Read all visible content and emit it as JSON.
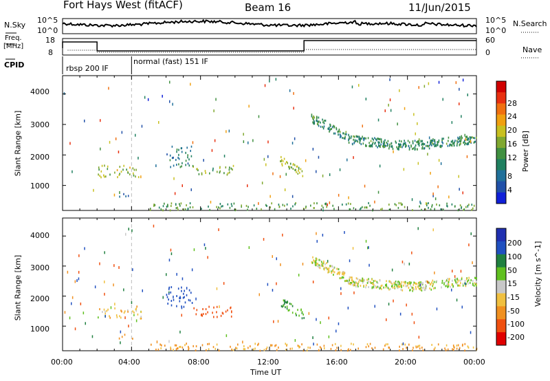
{
  "header": {
    "station": "Fort Hays West (fitACF)",
    "beam": "Beam 16",
    "date": "11/Jun/2015"
  },
  "top_panel": {
    "left_label": "N.Sky",
    "right_label": "N.Search",
    "left_ticks": [
      "10^5",
      "10^0"
    ],
    "right_ticks": [
      "10^5",
      "10^0"
    ]
  },
  "freq_panel": {
    "left_label_1": "Freq.",
    "left_label_2": "[MHz]",
    "right_label": "Nave",
    "left_ticks": [
      "18",
      "8"
    ],
    "right_ticks": [
      "60",
      "0"
    ]
  },
  "cpid": {
    "label": "CPID",
    "modes": [
      {
        "label": "rbsp 200 IF",
        "start": 0,
        "end": 4
      },
      {
        "label": "normal (fast) 151 IF",
        "start": 4,
        "end": 24
      }
    ]
  },
  "chart_data": [
    {
      "type": "heatmap",
      "quantity": "Power",
      "xlabel": "",
      "ylabel": "Slant Range [km]",
      "x_unit": "hours UT",
      "xlim": [
        0,
        24
      ],
      "ylim": [
        180,
        4600
      ],
      "yticks": [
        1000,
        2000,
        3000,
        4000
      ],
      "colorbar": {
        "label": "Power [dB]",
        "ticks": [
          "4",
          "8",
          "12",
          "16",
          "20",
          "24",
          "28"
        ],
        "colors": [
          "#1020d8",
          "#2050a8",
          "#20709a",
          "#208060",
          "#409040",
          "#80a830",
          "#c8c020",
          "#f0a010",
          "#f07010",
          "#e83010",
          "#d00000"
        ]
      },
      "regions": [
        {
          "t0": 2.0,
          "t1": 4.6,
          "r0": 1250,
          "r1": 1650,
          "val": 16
        },
        {
          "t0": 3.2,
          "t1": 4.1,
          "r0": 580,
          "r1": 720,
          "val": 6
        },
        {
          "t0": 6.0,
          "t1": 7.5,
          "r0": 1600,
          "r1": 2300,
          "val": 8
        },
        {
          "t0": 7.5,
          "t1": 9.9,
          "r0": 1300,
          "r1": 1650,
          "val": 14
        },
        {
          "t0": 12.6,
          "t1": 14.0,
          "r0": 1200,
          "r1": 1900,
          "val": 16
        },
        {
          "t0": 14.4,
          "t1": 24.0,
          "r0": 2100,
          "r1": 3300,
          "val": 10
        },
        {
          "t0": 5.0,
          "t1": 24.0,
          "r0": 180,
          "r1": 420,
          "val": 12
        }
      ]
    },
    {
      "type": "heatmap",
      "quantity": "Velocity",
      "xlabel": "Time UT",
      "ylabel": "Slant Range [km]",
      "x_unit": "hours UT",
      "xlim": [
        0,
        24
      ],
      "ylim": [
        180,
        4600
      ],
      "yticks": [
        1000,
        2000,
        3000,
        4000
      ],
      "xticks": [
        "00:00",
        "04:00",
        "08:00",
        "12:00",
        "16:00",
        "20:00",
        "00:00"
      ],
      "colorbar": {
        "label": "Velocity [m s^-1]",
        "ticks": [
          "200",
          "100",
          "50",
          "15",
          "-15",
          "-50",
          "-100",
          "-200"
        ],
        "colors": [
          "#2030b0",
          "#2050c0",
          "#208040",
          "#60c020",
          "#c8c8c8",
          "#f0c040",
          "#f09020",
          "#f05010",
          "#e00000"
        ]
      },
      "regions": [
        {
          "t0": 2.0,
          "t1": 4.6,
          "r0": 1250,
          "r1": 1650,
          "val": -20
        },
        {
          "t0": 3.2,
          "t1": 4.1,
          "r0": 580,
          "r1": 720,
          "val": -60
        },
        {
          "t0": 6.0,
          "t1": 7.5,
          "r0": 1600,
          "r1": 2300,
          "val": 100
        },
        {
          "t0": 7.5,
          "t1": 9.9,
          "r0": 1300,
          "r1": 1650,
          "val": -120
        },
        {
          "t0": 12.6,
          "t1": 14.0,
          "r0": 1200,
          "r1": 1900,
          "val": 40
        },
        {
          "t0": 14.4,
          "t1": 24.0,
          "r0": 2100,
          "r1": 3300,
          "val": 0
        },
        {
          "t0": 5.0,
          "t1": 24.0,
          "r0": 180,
          "r1": 420,
          "val": -40
        }
      ]
    }
  ]
}
